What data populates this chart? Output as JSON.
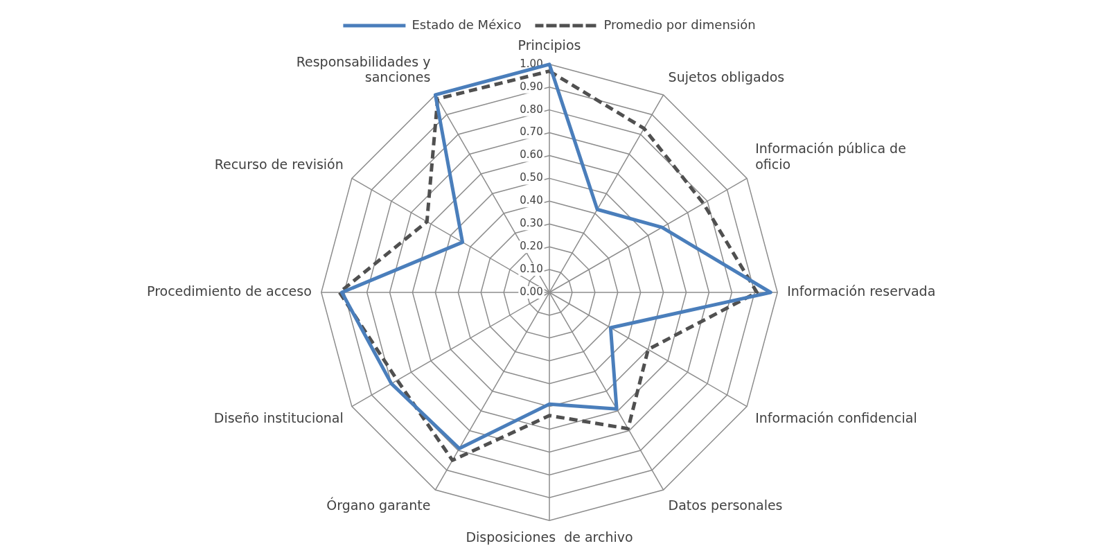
{
  "chart_data": {
    "type": "radar",
    "categories": [
      "Principios",
      "Sujetos obligados",
      "Información pública de oficio",
      "Información reservada",
      "Información confidencial",
      "Datos personales",
      "Disposiciones  de archivo",
      "Órgano garante",
      "Diseño institucional",
      "Procedimiento de acceso",
      "Recurso de revisión",
      "Responsabilidades y sanciones"
    ],
    "series": [
      {
        "name": "Estado de México",
        "color": "#4a7ebb",
        "line_style": "solid",
        "values": [
          1.0,
          0.42,
          0.57,
          0.97,
          0.31,
          0.59,
          0.49,
          0.79,
          0.8,
          0.91,
          0.44,
          1.0
        ]
      },
      {
        "name": "Promedio por dimensión",
        "color": "#505050",
        "line_style": "dashed",
        "values": [
          0.97,
          0.83,
          0.78,
          0.91,
          0.5,
          0.69,
          0.54,
          0.85,
          0.77,
          0.92,
          0.62,
          0.98
        ]
      }
    ],
    "ylim": [
      0,
      1
    ],
    "yticks": [
      {
        "value": 0,
        "label": "0.00"
      },
      {
        "value": 0.1,
        "label": "0.10"
      },
      {
        "value": 0.2,
        "label": "0.20"
      },
      {
        "value": 0.3,
        "label": "0.30"
      },
      {
        "value": 0.4,
        "label": "0.40"
      },
      {
        "value": 0.5,
        "label": "0.50"
      },
      {
        "value": 0.6,
        "label": "0.60"
      },
      {
        "value": 0.7,
        "label": "0.70"
      },
      {
        "value": 0.8,
        "label": "0.80"
      },
      {
        "value": 0.9,
        "label": "0.90"
      },
      {
        "value": 1,
        "label": "1.00"
      }
    ],
    "grid": true,
    "legend": "top",
    "marker": "none"
  }
}
